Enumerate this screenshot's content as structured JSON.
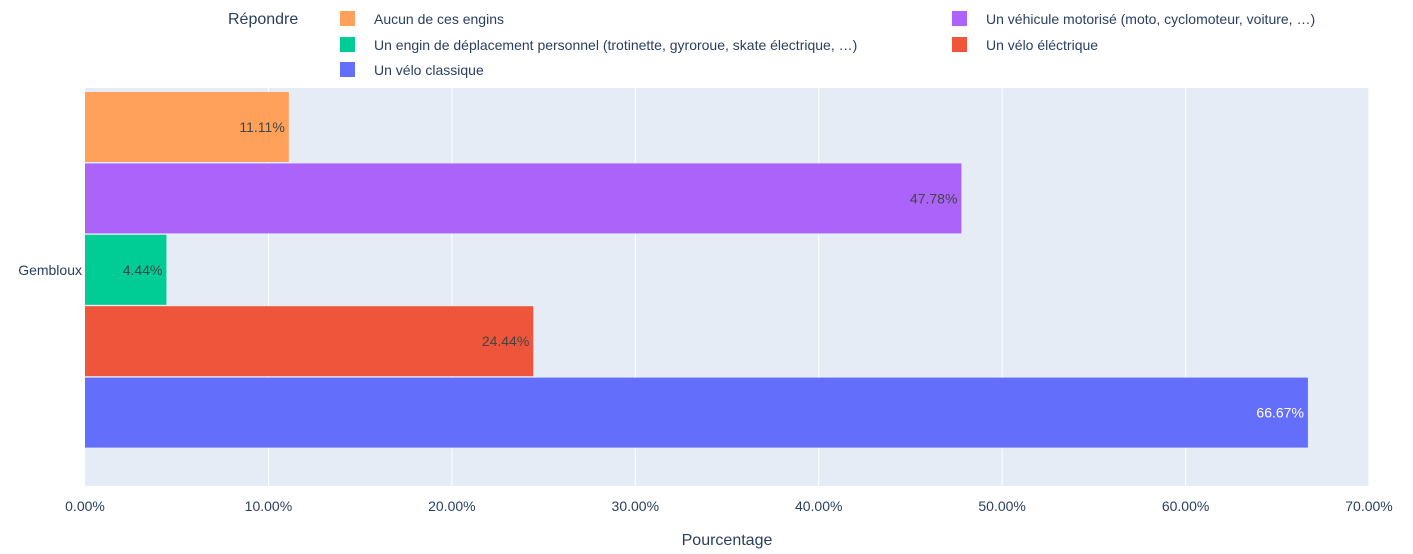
{
  "chart_data": {
    "type": "bar",
    "orientation": "horizontal",
    "categories": [
      "Gembloux"
    ],
    "xlabel": "Pourcentage",
    "ylabel": "",
    "xlim": [
      0,
      70
    ],
    "x_ticks": [
      "0.00%",
      "10.00%",
      "20.00%",
      "30.00%",
      "40.00%",
      "50.00%",
      "60.00%",
      "70.00%"
    ],
    "grid": true,
    "legend": {
      "title": "Répondre",
      "placement": "top"
    },
    "series": [
      {
        "name": "Aucun de ces engins",
        "values": [
          11.11
        ],
        "label": "11.11%",
        "color": "#FFA15A"
      },
      {
        "name": "Un véhicule motorisé (moto, cyclomoteur, voiture, …)",
        "values": [
          47.78
        ],
        "label": "47.78%",
        "color": "#AB63FA"
      },
      {
        "name": "Un engin de déplacement personnel (trotinette, gyroroue, skate électrique, …)",
        "values": [
          4.44
        ],
        "label": "4.44%",
        "color": "#00CC96"
      },
      {
        "name": "Un vélo éléctrique",
        "values": [
          24.44
        ],
        "label": "24.44%",
        "color": "#EF553B"
      },
      {
        "name": "Un vélo classique",
        "values": [
          66.67
        ],
        "label": "66.67%",
        "color": "#636EFA"
      }
    ]
  }
}
